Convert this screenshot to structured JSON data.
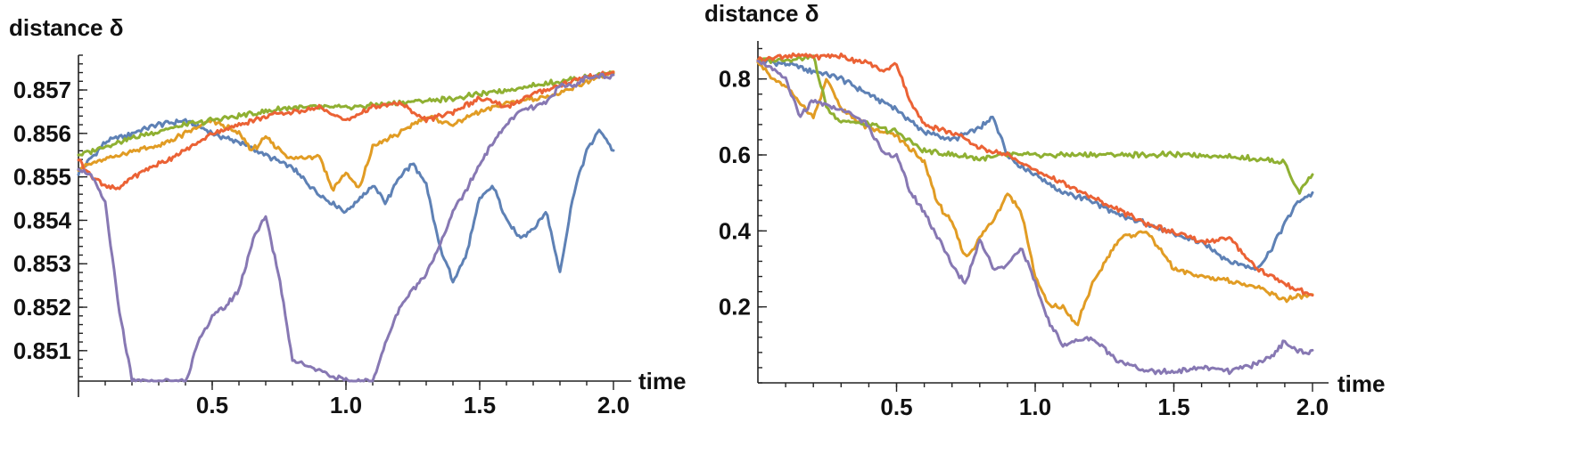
{
  "chart_data": [
    {
      "type": "line",
      "ylabel": "distance δ",
      "xlabel": "time",
      "xlim": [
        0,
        2.0
      ],
      "ylim": [
        0.8503,
        0.8578
      ],
      "xticks": [
        "0.5",
        "1.0",
        "1.5",
        "2.0"
      ],
      "xtick_values": [
        0.5,
        1.0,
        1.5,
        2.0
      ],
      "yticks": [
        "0.851",
        "0.852",
        "0.853",
        "0.854",
        "0.855",
        "0.856",
        "0.857"
      ],
      "ytick_values": [
        0.851,
        0.852,
        0.853,
        0.854,
        0.855,
        0.856,
        0.857
      ],
      "grid": false,
      "colors": [
        "#5E81B5",
        "#E19C24",
        "#8FB032",
        "#EB6235",
        "#8778B3"
      ],
      "series": [
        {
          "color": "#5E81B5",
          "x": [
            0,
            0.1,
            0.2,
            0.3,
            0.4,
            0.5,
            0.6,
            0.7,
            0.8,
            0.85,
            0.9,
            0.95,
            1.0,
            1.05,
            1.1,
            1.15,
            1.2,
            1.25,
            1.3,
            1.35,
            1.4,
            1.45,
            1.5,
            1.55,
            1.6,
            1.65,
            1.7,
            1.75,
            1.8,
            1.85,
            1.9,
            1.95,
            2.0
          ],
          "y": [
            0.8551,
            0.8558,
            0.856,
            0.8562,
            0.8563,
            0.856,
            0.8558,
            0.8555,
            0.8552,
            0.8549,
            0.8546,
            0.8544,
            0.8542,
            0.8545,
            0.8548,
            0.8544,
            0.855,
            0.8553,
            0.8548,
            0.8534,
            0.8526,
            0.8532,
            0.8545,
            0.8548,
            0.854,
            0.8536,
            0.8538,
            0.8542,
            0.8528,
            0.8546,
            0.8556,
            0.8561,
            0.8556
          ]
        },
        {
          "color": "#E19C24",
          "x": [
            0,
            0.1,
            0.2,
            0.3,
            0.4,
            0.5,
            0.6,
            0.65,
            0.7,
            0.8,
            0.9,
            0.95,
            1.0,
            1.05,
            1.1,
            1.2,
            1.3,
            1.4,
            1.5,
            1.6,
            1.7,
            1.8,
            1.9,
            2.0
          ],
          "y": [
            0.8552,
            0.8554,
            0.8556,
            0.8557,
            0.856,
            0.8563,
            0.856,
            0.8556,
            0.8559,
            0.8554,
            0.8555,
            0.8547,
            0.8551,
            0.8547,
            0.8557,
            0.856,
            0.8564,
            0.8562,
            0.8565,
            0.8567,
            0.8568,
            0.8569,
            0.8572,
            0.8574
          ]
        },
        {
          "color": "#8FB032",
          "x": [
            0,
            0.2,
            0.4,
            0.6,
            0.8,
            1.0,
            1.2,
            1.4,
            1.6,
            1.8,
            2.0
          ],
          "y": [
            0.8555,
            0.8559,
            0.8562,
            0.8564,
            0.8566,
            0.8566,
            0.8567,
            0.8568,
            0.857,
            0.8572,
            0.8574
          ]
        },
        {
          "color": "#EB6235",
          "x": [
            0,
            0.05,
            0.1,
            0.15,
            0.2,
            0.3,
            0.4,
            0.5,
            0.6,
            0.7,
            0.8,
            0.9,
            1.0,
            1.1,
            1.2,
            1.3,
            1.4,
            1.5,
            1.6,
            1.7,
            1.8,
            1.9,
            2.0
          ],
          "y": [
            0.8554,
            0.855,
            0.8548,
            0.8547,
            0.855,
            0.8553,
            0.8556,
            0.856,
            0.8562,
            0.8564,
            0.8565,
            0.8566,
            0.8563,
            0.8566,
            0.8567,
            0.8563,
            0.8565,
            0.8568,
            0.8566,
            0.8569,
            0.8571,
            0.8573,
            0.8574
          ]
        },
        {
          "color": "#8778B3",
          "x": [
            0,
            0.05,
            0.1,
            0.15,
            0.2,
            0.4,
            0.45,
            0.5,
            0.55,
            0.6,
            0.65,
            0.7,
            0.75,
            0.8,
            1.0,
            1.1,
            1.15,
            1.2,
            1.25,
            1.3,
            1.35,
            1.4,
            1.45,
            1.5,
            1.55,
            1.6,
            1.65,
            1.7,
            1.75,
            1.8,
            1.85,
            1.9,
            1.95,
            2.0
          ],
          "y": [
            0.8552,
            0.855,
            0.8544,
            0.852,
            0.8503,
            0.8503,
            0.8512,
            0.8518,
            0.852,
            0.8524,
            0.8535,
            0.8541,
            0.8527,
            0.8508,
            0.8503,
            0.8503,
            0.8512,
            0.852,
            0.8524,
            0.8528,
            0.8534,
            0.8542,
            0.8547,
            0.8553,
            0.8558,
            0.8562,
            0.8565,
            0.8566,
            0.8567,
            0.8571,
            0.8571,
            0.8573,
            0.8573,
            0.8573
          ]
        }
      ]
    },
    {
      "type": "line",
      "ylabel": "distance δ",
      "xlabel": "time",
      "xlim": [
        0,
        2.0
      ],
      "ylim": [
        0.0,
        0.9
      ],
      "xticks": [
        "0.5",
        "1.0",
        "1.5",
        "2.0"
      ],
      "xtick_values": [
        0.5,
        1.0,
        1.5,
        2.0
      ],
      "yticks": [
        "0.2",
        "0.4",
        "0.6",
        "0.8"
      ],
      "ytick_values": [
        0.2,
        0.4,
        0.6,
        0.8
      ],
      "grid": false,
      "colors": [
        "#5E81B5",
        "#E19C24",
        "#8FB032",
        "#EB6235",
        "#8778B3"
      ],
      "series": [
        {
          "color": "#5E81B5",
          "x": [
            0,
            0.1,
            0.2,
            0.3,
            0.4,
            0.5,
            0.6,
            0.7,
            0.8,
            0.85,
            0.9,
            0.95,
            1.0,
            1.1,
            1.2,
            1.3,
            1.4,
            1.5,
            1.6,
            1.7,
            1.8,
            1.85,
            1.9,
            1.95,
            2.0
          ],
          "y": [
            0.85,
            0.84,
            0.82,
            0.8,
            0.76,
            0.72,
            0.66,
            0.64,
            0.67,
            0.7,
            0.6,
            0.57,
            0.55,
            0.5,
            0.48,
            0.44,
            0.42,
            0.39,
            0.37,
            0.32,
            0.3,
            0.35,
            0.42,
            0.48,
            0.5
          ]
        },
        {
          "color": "#E19C24",
          "x": [
            0,
            0.05,
            0.1,
            0.2,
            0.25,
            0.3,
            0.4,
            0.5,
            0.6,
            0.65,
            0.7,
            0.75,
            0.8,
            0.85,
            0.9,
            0.95,
            1.0,
            1.05,
            1.1,
            1.15,
            1.2,
            1.3,
            1.4,
            1.5,
            1.6,
            1.7,
            1.8,
            1.9,
            2.0
          ],
          "y": [
            0.85,
            0.8,
            0.78,
            0.7,
            0.8,
            0.72,
            0.67,
            0.65,
            0.58,
            0.47,
            0.42,
            0.33,
            0.38,
            0.43,
            0.5,
            0.45,
            0.28,
            0.2,
            0.2,
            0.15,
            0.25,
            0.38,
            0.4,
            0.3,
            0.28,
            0.27,
            0.25,
            0.22,
            0.23
          ]
        },
        {
          "color": "#8FB032",
          "x": [
            0,
            0.1,
            0.2,
            0.25,
            0.3,
            0.4,
            0.5,
            0.6,
            0.7,
            0.8,
            0.9,
            1.0,
            1.2,
            1.4,
            1.6,
            1.8,
            1.9,
            1.95,
            2.0
          ],
          "y": [
            0.85,
            0.85,
            0.86,
            0.72,
            0.69,
            0.68,
            0.66,
            0.61,
            0.6,
            0.59,
            0.6,
            0.6,
            0.6,
            0.6,
            0.6,
            0.59,
            0.58,
            0.5,
            0.55
          ]
        },
        {
          "color": "#EB6235",
          "x": [
            0,
            0.1,
            0.2,
            0.3,
            0.4,
            0.45,
            0.5,
            0.55,
            0.6,
            0.7,
            0.8,
            0.9,
            1.0,
            1.2,
            1.4,
            1.6,
            1.7,
            1.8,
            1.9,
            2.0
          ],
          "y": [
            0.85,
            0.86,
            0.86,
            0.86,
            0.84,
            0.82,
            0.84,
            0.74,
            0.68,
            0.66,
            0.62,
            0.6,
            0.56,
            0.49,
            0.42,
            0.37,
            0.38,
            0.3,
            0.26,
            0.23
          ]
        },
        {
          "color": "#8778B3",
          "x": [
            0,
            0.1,
            0.15,
            0.2,
            0.3,
            0.4,
            0.45,
            0.5,
            0.55,
            0.6,
            0.65,
            0.7,
            0.75,
            0.8,
            0.85,
            0.9,
            0.95,
            1.0,
            1.05,
            1.1,
            1.2,
            1.3,
            1.4,
            1.5,
            1.6,
            1.7,
            1.8,
            1.85,
            1.9,
            1.95,
            2.0
          ],
          "y": [
            0.85,
            0.8,
            0.7,
            0.74,
            0.72,
            0.68,
            0.6,
            0.6,
            0.5,
            0.45,
            0.38,
            0.31,
            0.26,
            0.38,
            0.3,
            0.31,
            0.36,
            0.26,
            0.16,
            0.1,
            0.12,
            0.06,
            0.03,
            0.03,
            0.04,
            0.03,
            0.05,
            0.07,
            0.11,
            0.08,
            0.08
          ]
        }
      ]
    }
  ]
}
